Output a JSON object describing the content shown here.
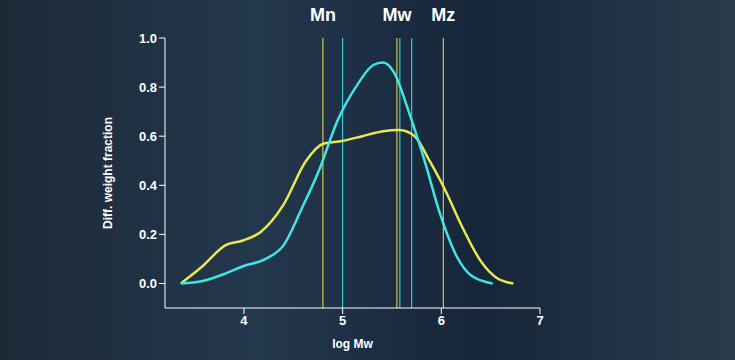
{
  "chart_data": {
    "type": "line",
    "x_label": "log Mw",
    "y_label": "Diff. weight fraction",
    "xlim": [
      3.2,
      7.0
    ],
    "xticks": [
      4,
      5,
      6,
      7
    ],
    "ylim": [
      -0.1,
      1.0
    ],
    "yticks": [
      {
        "value": 0,
        "label": "0.0"
      },
      {
        "value": 0.2,
        "label": "0.2"
      },
      {
        "value": 0.4,
        "label": "0.4"
      },
      {
        "value": 0.6,
        "label": "0.6"
      },
      {
        "value": 0.8,
        "label": "0.8"
      },
      {
        "value": 1.0,
        "label": "1.0"
      }
    ],
    "grid": false,
    "series": [
      {
        "color": "#e8e84e",
        "x": [
          3.36,
          3.58,
          3.81,
          3.99,
          4.17,
          4.4,
          4.63,
          4.81,
          4.99,
          5.2,
          5.41,
          5.57,
          5.73,
          5.88,
          6.04,
          6.2,
          6.41,
          6.57,
          6.73
        ],
        "values": [
          0,
          0.07,
          0.155,
          0.175,
          0.21,
          0.32,
          0.5,
          0.57,
          0.58,
          0.6,
          0.62,
          0.625,
          0.6,
          0.5,
          0.38,
          0.24,
          0.085,
          0.02,
          0
        ]
      },
      {
        "color": "#3ee6e6",
        "x": [
          3.36,
          3.58,
          3.81,
          3.99,
          4.22,
          4.4,
          4.58,
          4.76,
          4.95,
          5.15,
          5.31,
          5.41,
          5.52,
          5.67,
          5.83,
          5.99,
          6.15,
          6.31,
          6.52
        ],
        "values": [
          0,
          0.01,
          0.04,
          0.07,
          0.1,
          0.155,
          0.3,
          0.46,
          0.665,
          0.81,
          0.89,
          0.9,
          0.86,
          0.7,
          0.5,
          0.28,
          0.115,
          0.03,
          0
        ]
      }
    ],
    "moments": [
      {
        "label": "Mn",
        "values": [
          4.8,
          5.0
        ]
      },
      {
        "label": "Mw",
        "values": [
          5.55,
          5.58
        ]
      },
      {
        "label": "Mz",
        "values": [
          6.02,
          5.7
        ]
      }
    ]
  }
}
